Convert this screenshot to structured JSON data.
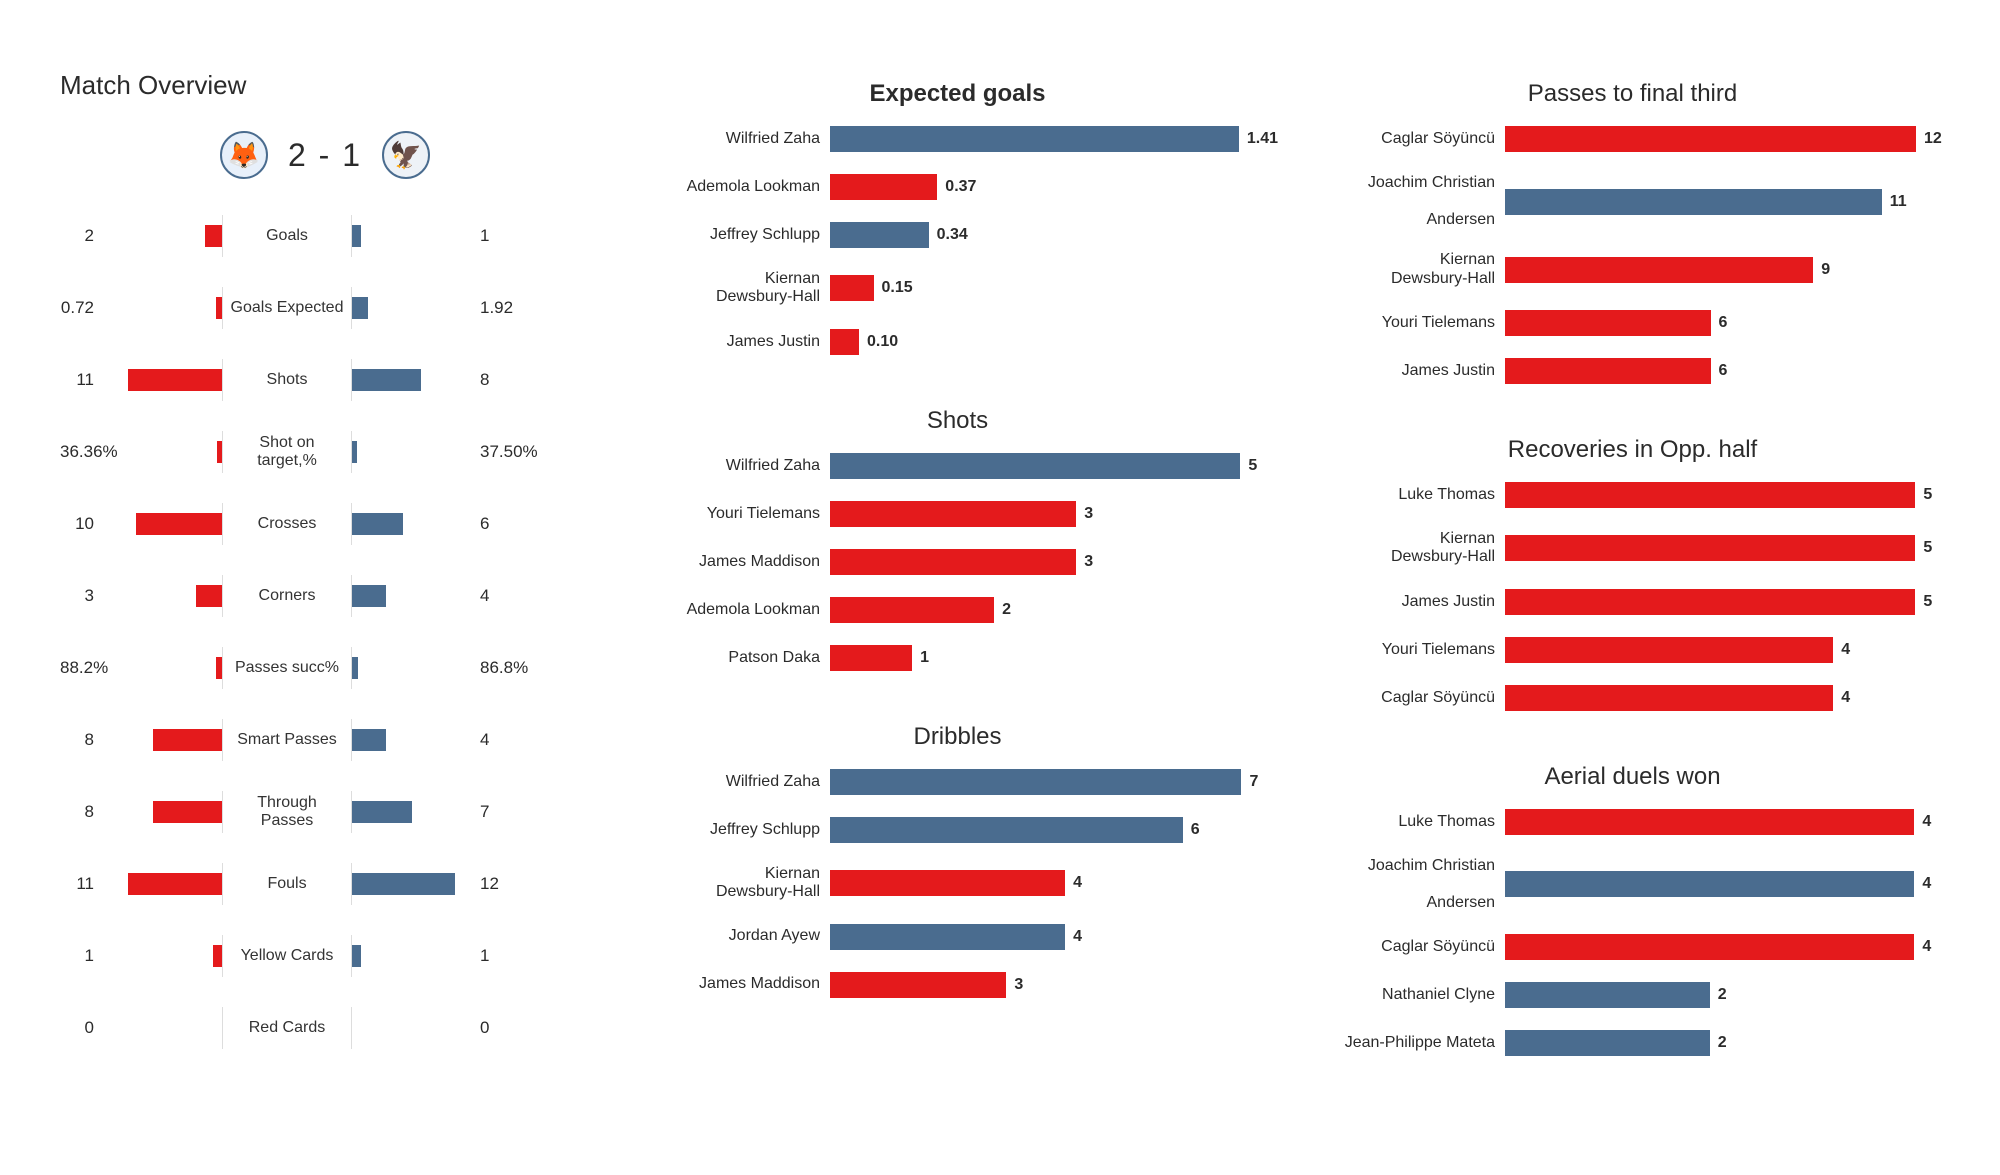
{
  "colors": {
    "team_a": "#e41a1c",
    "team_b": "#4a6c8f",
    "background": "#ffffff",
    "text": "#2b2b2b"
  },
  "overview": {
    "title": "Match Overview",
    "score_text": "2 - 1",
    "team_a_logo": "🦊",
    "team_b_logo": "🦅",
    "max_scale": 14,
    "rows": [
      {
        "label": "Goals",
        "left_val": "2",
        "right_val": "1",
        "left_num": 2,
        "right_num": 1
      },
      {
        "label": "Goals Expected",
        "left_val": "0.72",
        "right_val": "1.92",
        "left_num": 0.72,
        "right_num": 1.92
      },
      {
        "label": "Shots",
        "left_val": "11",
        "right_val": "8",
        "left_num": 11,
        "right_num": 8
      },
      {
        "label": "Shot on target,%",
        "left_val": "36.36%",
        "right_val": "37.50%",
        "left_num": 0.6,
        "right_num": 0.6
      },
      {
        "label": "Crosses",
        "left_val": "10",
        "right_val": "6",
        "left_num": 10,
        "right_num": 6
      },
      {
        "label": "Corners",
        "left_val": "3",
        "right_val": "4",
        "left_num": 3,
        "right_num": 4
      },
      {
        "label": "Passes succ%",
        "left_val": "88.2%",
        "right_val": "86.8%",
        "left_num": 0.7,
        "right_num": 0.7
      },
      {
        "label": "Smart Passes",
        "left_val": "8",
        "right_val": "4",
        "left_num": 8,
        "right_num": 4
      },
      {
        "label": "Through Passes",
        "left_val": "8",
        "right_val": "7",
        "left_num": 8,
        "right_num": 7
      },
      {
        "label": "Fouls",
        "left_val": "11",
        "right_val": "12",
        "left_num": 11,
        "right_num": 12
      },
      {
        "label": "Yellow Cards",
        "left_val": "1",
        "right_val": "1",
        "left_num": 1,
        "right_num": 1
      },
      {
        "label": "Red Cards",
        "left_val": "0",
        "right_val": "0",
        "left_num": 0,
        "right_num": 0
      }
    ]
  },
  "stat_charts_col1": [
    {
      "title": "Expected goals",
      "title_bold": true,
      "max": 1.5,
      "rows": [
        {
          "label": "Wilfried Zaha",
          "value_text": "1.41",
          "value": 1.41,
          "team": "b"
        },
        {
          "label": "Ademola Lookman",
          "value_text": "0.37",
          "value": 0.37,
          "team": "a"
        },
        {
          "label": "Jeffrey  Schlupp",
          "value_text": "0.34",
          "value": 0.34,
          "team": "b"
        },
        {
          "label": "Kiernan Dewsbury-Hall",
          "value_text": "0.15",
          "value": 0.15,
          "team": "a"
        },
        {
          "label": "James Justin",
          "value_text": "0.10",
          "value": 0.1,
          "team": "a"
        }
      ]
    },
    {
      "title": "Shots",
      "title_bold": false,
      "max": 5.3,
      "rows": [
        {
          "label": "Wilfried Zaha",
          "value_text": "5",
          "value": 5,
          "team": "b"
        },
        {
          "label": "Youri Tielemans",
          "value_text": "3",
          "value": 3,
          "team": "a"
        },
        {
          "label": "James Maddison",
          "value_text": "3",
          "value": 3,
          "team": "a"
        },
        {
          "label": "Ademola Lookman",
          "value_text": "2",
          "value": 2,
          "team": "a"
        },
        {
          "label": "Patson Daka",
          "value_text": "1",
          "value": 1,
          "team": "a"
        }
      ]
    },
    {
      "title": "Dribbles",
      "title_bold": false,
      "max": 7.4,
      "rows": [
        {
          "label": "Wilfried Zaha",
          "value_text": "7",
          "value": 7,
          "team": "b"
        },
        {
          "label": "Jeffrey  Schlupp",
          "value_text": "6",
          "value": 6,
          "team": "b"
        },
        {
          "label": "Kiernan Dewsbury-Hall",
          "value_text": "4",
          "value": 4,
          "team": "a"
        },
        {
          "label": "Jordan Ayew",
          "value_text": "4",
          "value": 4,
          "team": "b"
        },
        {
          "label": "James Maddison",
          "value_text": "3",
          "value": 3,
          "team": "a"
        }
      ]
    }
  ],
  "stat_charts_col2": [
    {
      "title": "Passes to final third",
      "title_bold": false,
      "max": 12.7,
      "rows": [
        {
          "label": "Caglar Söyüncü",
          "value_text": "12",
          "value": 12,
          "team": "a"
        },
        {
          "label": "Joachim Christian Andersen",
          "value_text": "11",
          "value": 11,
          "team": "b"
        },
        {
          "label": "Kiernan Dewsbury-Hall",
          "value_text": "9",
          "value": 9,
          "team": "a"
        },
        {
          "label": "Youri Tielemans",
          "value_text": "6",
          "value": 6,
          "team": "a"
        },
        {
          "label": "James Justin",
          "value_text": "6",
          "value": 6,
          "team": "a"
        }
      ]
    },
    {
      "title": "Recoveries in Opp. half",
      "title_bold": false,
      "max": 5.3,
      "rows": [
        {
          "label": "Luke Thomas",
          "value_text": "5",
          "value": 5,
          "team": "a"
        },
        {
          "label": "Kiernan Dewsbury-Hall",
          "value_text": "5",
          "value": 5,
          "team": "a"
        },
        {
          "label": "James Justin",
          "value_text": "5",
          "value": 5,
          "team": "a"
        },
        {
          "label": "Youri Tielemans",
          "value_text": "4",
          "value": 4,
          "team": "a"
        },
        {
          "label": "Caglar Söyüncü",
          "value_text": "4",
          "value": 4,
          "team": "a"
        }
      ]
    },
    {
      "title": "Aerial duels won",
      "title_bold": false,
      "max": 4.25,
      "rows": [
        {
          "label": "Luke Thomas",
          "value_text": "4",
          "value": 4,
          "team": "a"
        },
        {
          "label": "Joachim Christian Andersen",
          "value_text": "4",
          "value": 4,
          "team": "b"
        },
        {
          "label": "Caglar Söyüncü",
          "value_text": "4",
          "value": 4,
          "team": "a"
        },
        {
          "label": "Nathaniel Clyne",
          "value_text": "2",
          "value": 2,
          "team": "b"
        },
        {
          "label": "Jean-Philippe Mateta",
          "value_text": "2",
          "value": 2,
          "team": "b"
        }
      ]
    }
  ]
}
